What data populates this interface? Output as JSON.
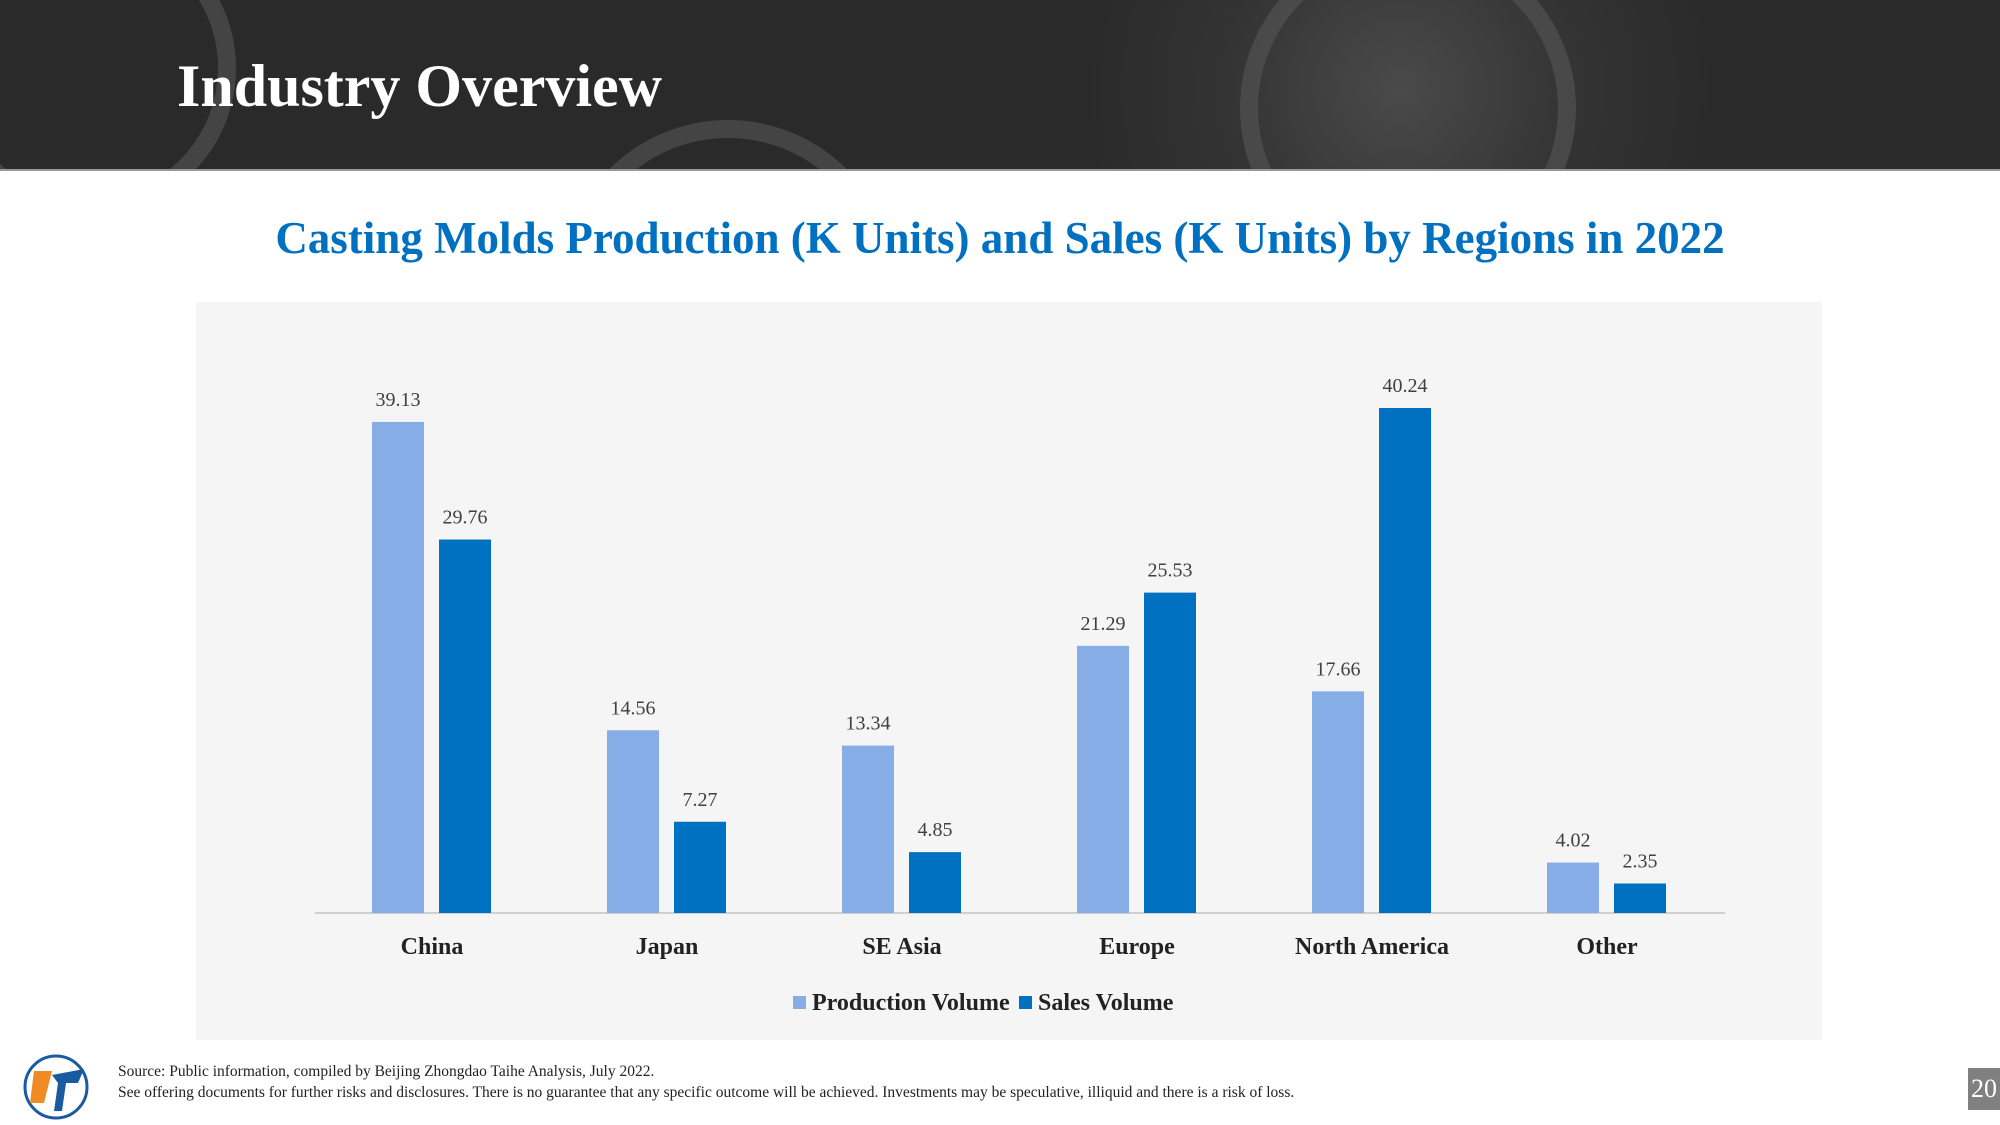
{
  "header": {
    "title": "Industry Overview"
  },
  "subtitle": "Casting Molds Production (K Units) and Sales (K Units) by Regions in 2022",
  "chart_data": {
    "type": "bar",
    "title": "Casting Molds Production (K Units) and Sales (K Units) by Regions in 2022",
    "categories": [
      "China",
      "Japan",
      "SE Asia",
      "Europe",
      "North America",
      "Other"
    ],
    "series": [
      {
        "name": "Production Volume",
        "color": "#86ADE6",
        "values": [
          39.13,
          14.56,
          13.34,
          21.29,
          17.66,
          4.02
        ]
      },
      {
        "name": "Sales Volume",
        "color": "#0070C0",
        "values": [
          29.76,
          7.27,
          4.85,
          25.53,
          40.24,
          2.35
        ]
      }
    ],
    "xlabel": "",
    "ylabel": "",
    "ylim": [
      0,
      40.24
    ],
    "grid": false,
    "legend": "bottom"
  },
  "footer": {
    "source": "Source: Public information, compiled by Beijing Zhongdao Taihe Analysis, July 2022.",
    "disclaimer": "See offering documents for further risks and disclosures. There is no guarantee that any specific outcome will be achieved. Investments may be speculative, illiquid and there is a risk of loss.",
    "page": "20"
  }
}
